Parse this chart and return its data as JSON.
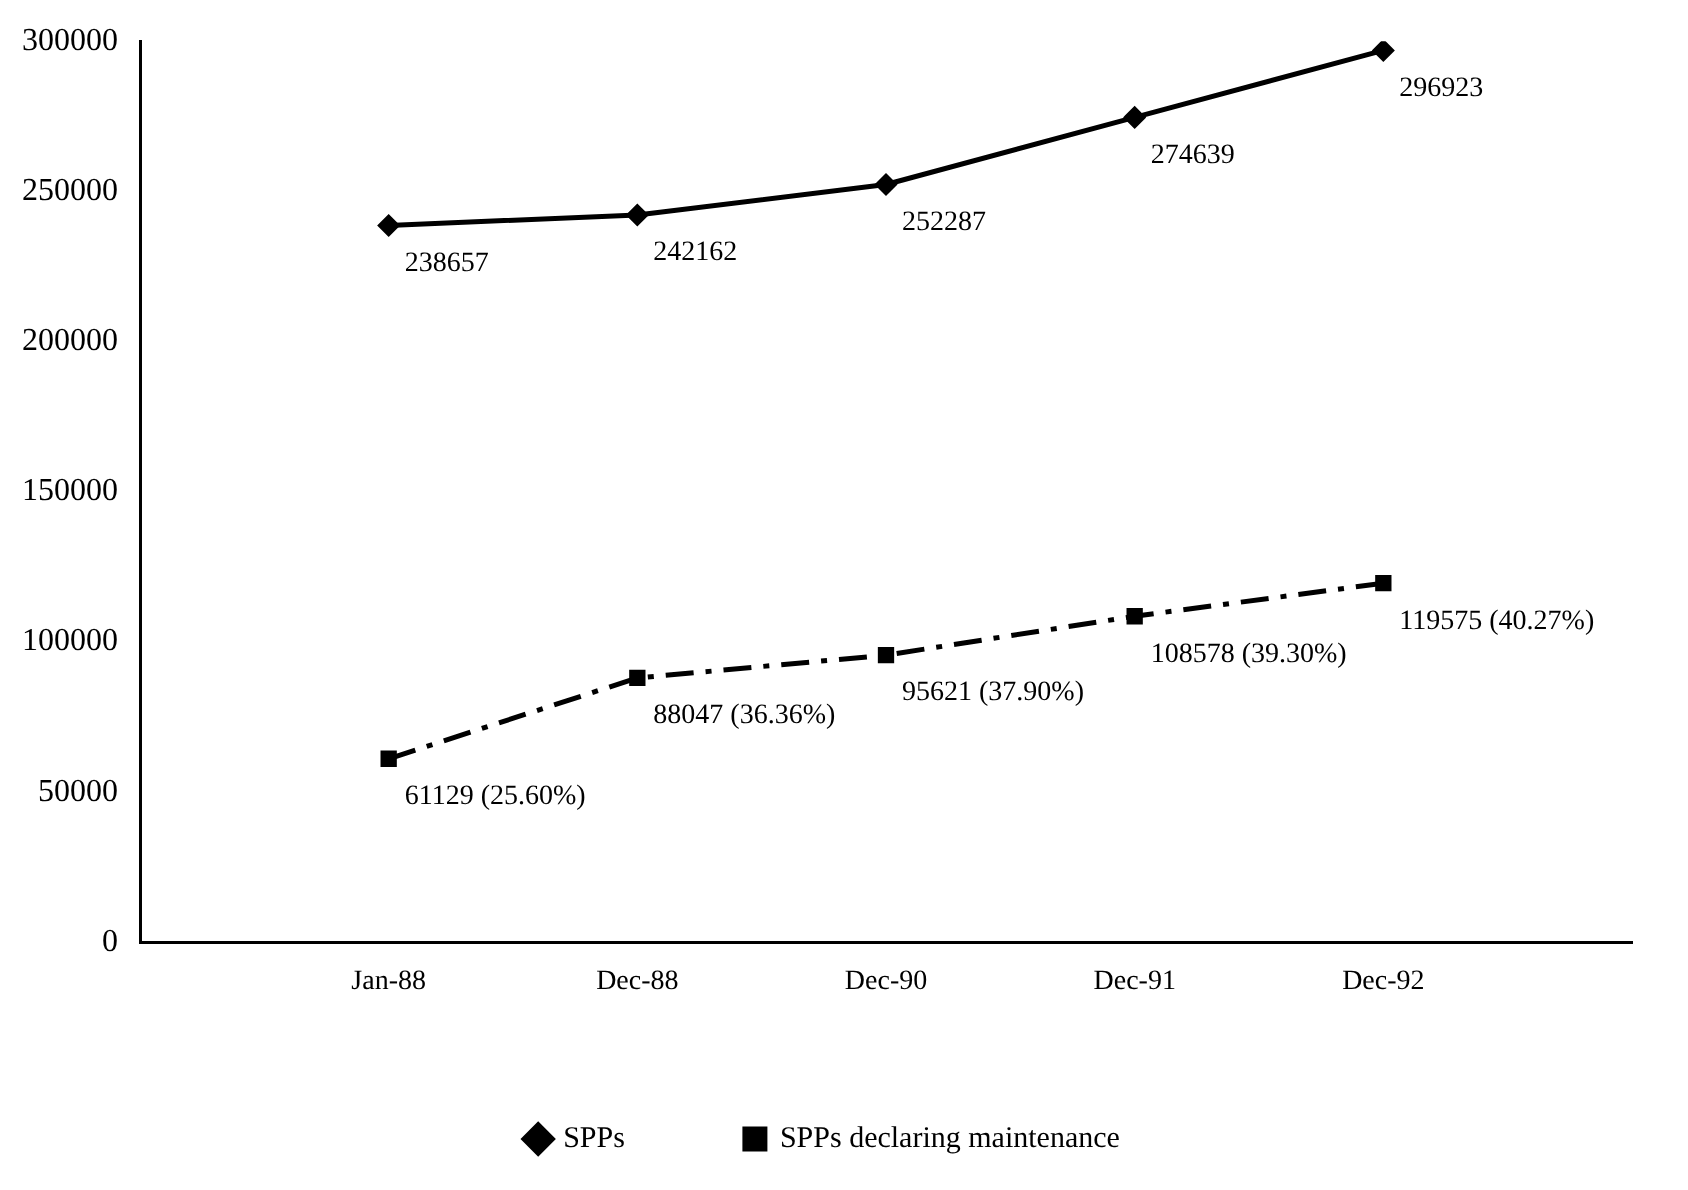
{
  "chart_data": {
    "type": "line",
    "categories": [
      "Jan-88",
      "Dec-88",
      "Dec-90",
      "Dec-91",
      "Dec-92"
    ],
    "ylim": [
      0,
      300000
    ],
    "yticks": [
      0,
      50000,
      100000,
      150000,
      200000,
      250000,
      300000
    ],
    "grid": false,
    "legend": "bottom",
    "series": [
      {
        "name": "SPPs",
        "color": "#000000",
        "marker": "diamond",
        "line_style": "solid",
        "values": [
          238657,
          242162,
          252287,
          274639,
          296923
        ],
        "value_labels": [
          "238657",
          "242162",
          "252287",
          "274639",
          "296923"
        ]
      },
      {
        "name": "SPPs declaring maintenance",
        "color": "#000000",
        "marker": "square",
        "line_style": "dashed",
        "values": [
          61129,
          88047,
          95621,
          108578,
          119575
        ],
        "value_labels": [
          "61129 (25.60%)",
          "88047 (36.36%)",
          "95621 (37.90%)",
          "108578 (39.30%)",
          "119575 (40.27%)"
        ]
      }
    ]
  }
}
